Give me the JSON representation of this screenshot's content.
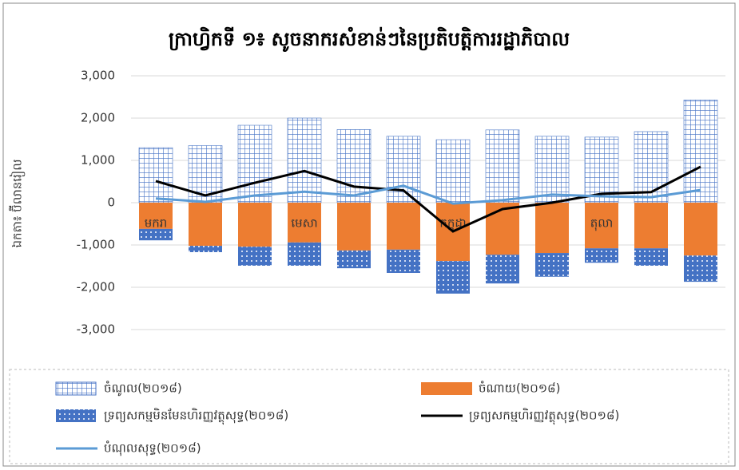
{
  "chart_data": {
    "type": "bar",
    "title": "ក្រាហ្វិកទី ១៖ សូចនាករសំខាន់ៗនៃប្រតិបត្តិការរដ្ឋាភិបាល",
    "y_label": "ឯកតា៖ ប៊ីលានរៀល",
    "categories": [
      "មករា",
      null,
      null,
      "មេសា",
      null,
      null,
      "កក្កដា",
      null,
      null,
      "តុលា",
      null,
      null
    ],
    "ylim": [
      -3000,
      3000
    ],
    "yticks": [
      {
        "value": -3000,
        "label": "-3,000"
      },
      {
        "value": -2000,
        "label": "-2,000"
      },
      {
        "value": -1000,
        "label": "-1,000"
      },
      0,
      {
        "value": 1000,
        "label": "1,000"
      },
      {
        "value": 2000,
        "label": "2,000"
      },
      {
        "value": 3000,
        "label": "3,000"
      }
    ],
    "grid": true,
    "legend": "bottom",
    "series": [
      {
        "name": "ចំណូល(២០១៨)",
        "kind": "bar",
        "pattern": "grid",
        "color": "#4472c4",
        "values": [
          1300,
          1350,
          1830,
          2000,
          1730,
          1570,
          1490,
          1720,
          1570,
          1550,
          1680,
          2430
        ]
      },
      {
        "name": "ចំណាយ(២០១៨)",
        "kind": "bar",
        "pattern": "solid",
        "color": "#ed7d31",
        "values": [
          -620,
          -1020,
          -1040,
          -940,
          -1130,
          -1110,
          -1380,
          -1230,
          -1190,
          -1080,
          -1080,
          -1250
        ]
      },
      {
        "name": "ទ្រព្យសកម្មមិនមែនហិរញ្ញវត្ថុសុទ្ធ(២០១៨)",
        "kind": "bar",
        "pattern": "dots",
        "color": "#4472c4",
        "values": [
          -270,
          -150,
          -450,
          -550,
          -420,
          -550,
          -770,
          -680,
          -560,
          -340,
          -410,
          -620
        ]
      },
      {
        "name": "ទ្រព្យសកម្មហិរញ្ញវត្ថុសុទ្ធ(២០១៨)",
        "kind": "line",
        "color": "#000000",
        "values": [
          510,
          170,
          470,
          750,
          380,
          290,
          -680,
          -150,
          0,
          210,
          250,
          850
        ]
      },
      {
        "name": "បំណុលសុទ្ធ(២០១៨)",
        "kind": "line",
        "color": "#5b9bd5",
        "values": [
          100,
          20,
          170,
          260,
          170,
          400,
          -20,
          60,
          190,
          150,
          130,
          300
        ]
      }
    ]
  }
}
